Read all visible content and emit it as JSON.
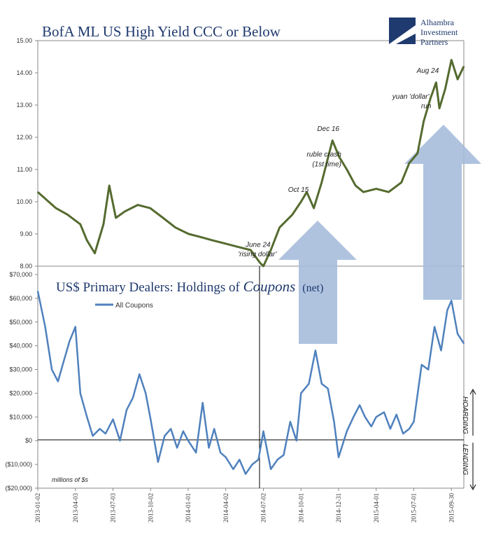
{
  "logo": {
    "line1": "Alhambra",
    "line2": "Investment",
    "line3": "Partners"
  },
  "colors": {
    "top_line": "#556b2f",
    "bottom_line": "#4f81bd",
    "arrow": "#a6bddb"
  },
  "chart_data": [
    {
      "type": "line",
      "title": "BofA ML US High Yield CCC or Below",
      "ylim": [
        8,
        15
      ],
      "yticks": [
        "8.00",
        "9.00",
        "10.00",
        "11.00",
        "12.00",
        "13.00",
        "14.00",
        "15.00"
      ],
      "grid": false,
      "x": [
        "2013-01-02",
        "2013-02-15",
        "2013-03-15",
        "2013-04-15",
        "2013-05-01",
        "2013-05-20",
        "2013-06-10",
        "2013-06-24",
        "2013-07-10",
        "2013-08-01",
        "2013-09-01",
        "2013-10-01",
        "2013-11-01",
        "2013-12-01",
        "2014-01-02",
        "2014-02-01",
        "2014-03-01",
        "2014-04-01",
        "2014-05-01",
        "2014-06-01",
        "2014-06-24",
        "2014-07-02",
        "2014-07-20",
        "2014-08-10",
        "2014-09-10",
        "2014-10-01",
        "2014-10-15",
        "2014-11-01",
        "2014-11-20",
        "2014-12-16",
        "2015-01-01",
        "2015-01-20",
        "2015-02-10",
        "2015-03-01",
        "2015-04-01",
        "2015-05-01",
        "2015-06-01",
        "2015-06-20",
        "2015-07-10",
        "2015-07-25",
        "2015-08-10",
        "2015-08-24",
        "2015-09-01",
        "2015-09-15",
        "2015-09-30",
        "2015-10-15",
        "2015-10-30"
      ],
      "series": [
        {
          "values": [
            10.3,
            9.8,
            9.6,
            9.3,
            8.8,
            8.4,
            9.3,
            10.5,
            9.5,
            9.7,
            9.9,
            9.8,
            9.5,
            9.2,
            9.0,
            8.9,
            8.8,
            8.7,
            8.6,
            8.5,
            8.1,
            8.0,
            8.5,
            9.2,
            9.6,
            10.0,
            10.3,
            9.8,
            10.6,
            11.9,
            11.4,
            11.0,
            10.5,
            10.3,
            10.4,
            10.3,
            10.6,
            11.2,
            11.5,
            12.5,
            13.2,
            13.7,
            12.9,
            13.5,
            14.4,
            13.8,
            14.2
          ]
        }
      ],
      "annotations": [
        {
          "text": "June 24",
          "x": "2014-06-24",
          "y": 8.6
        },
        {
          "text": "'rising dollar'",
          "x": "2014-06-24",
          "y": 8.3
        },
        {
          "text": "Oct 15",
          "x": "2014-10-15",
          "y": 10.3
        },
        {
          "text": "ruble crash",
          "x": "2014-12-16",
          "y": 11.4
        },
        {
          "text": "(1st time)",
          "x": "2014-12-16",
          "y": 11.1
        },
        {
          "text": "Dec 16",
          "x": "2014-12-16",
          "y": 12.2
        },
        {
          "text": "yuan 'dollar'",
          "x": "2015-08-10",
          "y": 13.2
        },
        {
          "text": "run",
          "x": "2015-08-10",
          "y": 12.9
        },
        {
          "text": "Aug 24",
          "x": "2015-08-24",
          "y": 14.0
        }
      ]
    },
    {
      "type": "line",
      "title_parts": [
        "US$ Primary Dealers: Holdings of ",
        "Coupons",
        " (net)"
      ],
      "ylim": [
        -20000,
        70000
      ],
      "yticks": [
        "($20,000)",
        "($10,000)",
        "$0",
        "$10,000",
        "$20,000",
        "$30,000",
        "$40,000",
        "$50,000",
        "$60,000",
        "$70,000"
      ],
      "xticks": [
        "2013-01-02",
        "2013-04-03",
        "2013-07-03",
        "2013-10-02",
        "2014-01-01",
        "2014-04-02",
        "2014-07-02",
        "2014-10-01",
        "2014-12-31",
        "2015-04-01",
        "2015-07-01",
        "2015-09-30"
      ],
      "grid": false,
      "legend": {
        "position": "top-left"
      },
      "unit_note": "millions of $s",
      "side_labels": [
        "HOARDING",
        "LENDING"
      ],
      "x": [
        "2013-01-02",
        "2013-01-20",
        "2013-02-05",
        "2013-02-20",
        "2013-03-05",
        "2013-03-20",
        "2013-04-03",
        "2013-04-15",
        "2013-05-01",
        "2013-05-15",
        "2013-06-01",
        "2013-06-15",
        "2013-07-03",
        "2013-07-20",
        "2013-08-05",
        "2013-08-20",
        "2013-09-05",
        "2013-09-20",
        "2013-10-02",
        "2013-10-20",
        "2013-11-05",
        "2013-11-20",
        "2013-12-05",
        "2013-12-20",
        "2014-01-01",
        "2014-01-20",
        "2014-02-05",
        "2014-02-20",
        "2014-03-05",
        "2014-03-20",
        "2014-04-02",
        "2014-04-20",
        "2014-05-05",
        "2014-05-20",
        "2014-06-05",
        "2014-06-20",
        "2014-07-02",
        "2014-07-20",
        "2014-08-05",
        "2014-08-20",
        "2014-09-05",
        "2014-09-20",
        "2014-10-01",
        "2014-10-20",
        "2014-11-05",
        "2014-11-20",
        "2014-12-05",
        "2014-12-20",
        "2014-12-31",
        "2015-01-20",
        "2015-02-05",
        "2015-02-20",
        "2015-03-05",
        "2015-03-20",
        "2015-04-01",
        "2015-04-20",
        "2015-05-05",
        "2015-05-20",
        "2015-06-05",
        "2015-06-20",
        "2015-07-01",
        "2015-07-20",
        "2015-08-05",
        "2015-08-20",
        "2015-09-05",
        "2015-09-20",
        "2015-09-30",
        "2015-10-15",
        "2015-10-30"
      ],
      "series": [
        {
          "name": "All Coupons",
          "values": [
            63000,
            48000,
            30000,
            25000,
            33000,
            42000,
            48000,
            20000,
            10000,
            2000,
            5000,
            3000,
            9000,
            0,
            13000,
            18000,
            28000,
            20000,
            9000,
            -9000,
            2000,
            5000,
            -3000,
            4000,
            0,
            -5000,
            16000,
            -3000,
            5000,
            -5000,
            -7000,
            -12000,
            -8000,
            -14000,
            -10000,
            -8000,
            4000,
            -12000,
            -8000,
            -6000,
            8000,
            0,
            20000,
            24000,
            38000,
            24000,
            22000,
            8000,
            -7000,
            4000,
            10000,
            15000,
            10000,
            6000,
            10000,
            12000,
            5000,
            11000,
            3000,
            5000,
            8000,
            32000,
            30000,
            48000,
            38000,
            55000,
            59000,
            45000,
            41000
          ]
        }
      ]
    }
  ]
}
